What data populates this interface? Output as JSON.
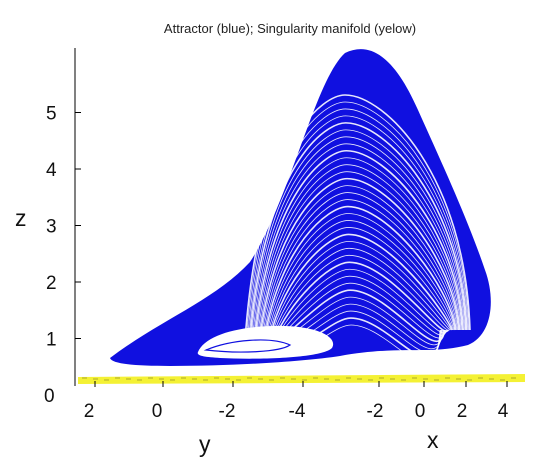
{
  "chart_data": {
    "type": "3d-trajectory",
    "title": "Attractor (blue); Singularity manifold (yelow)",
    "zlabel": "z",
    "ylabel": "y",
    "xlabel": "x",
    "z_ticks": [
      "0",
      "1",
      "2",
      "3",
      "4",
      "5"
    ],
    "y_ticks": [
      "2",
      "0",
      "-2",
      "-4"
    ],
    "x_ticks": [
      "-2",
      "0",
      "2",
      "4"
    ],
    "zlim": [
      0,
      5.9
    ],
    "series": [
      {
        "color": "#1010e0"
      },
      {
        "color": "#f2ee10"
      }
    ]
  }
}
